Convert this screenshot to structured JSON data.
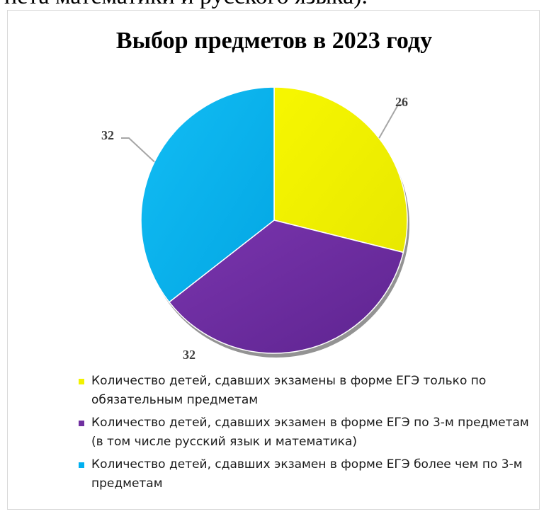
{
  "top_text": "нета математики и русского языка).",
  "chart_data": {
    "type": "pie",
    "title": "Выбор предметов в 2023 году",
    "categories": [
      "Количество детей, сдавших экзамены в форме ЕГЭ только по обязательным предметам",
      "Количество детей, сдавших экзамен в форме ЕГЭ по 3-м предметам (в том числе русский язык и математика)",
      "Количество детей, сдавших экзамен в форме ЕГЭ более чем по 3-м предметам"
    ],
    "values": [
      26,
      32,
      32
    ],
    "colors": [
      "#f2f200",
      "#7030a0",
      "#00b0f0"
    ],
    "data_labels": [
      "26",
      "32",
      "32"
    ],
    "legend_position": "bottom"
  }
}
